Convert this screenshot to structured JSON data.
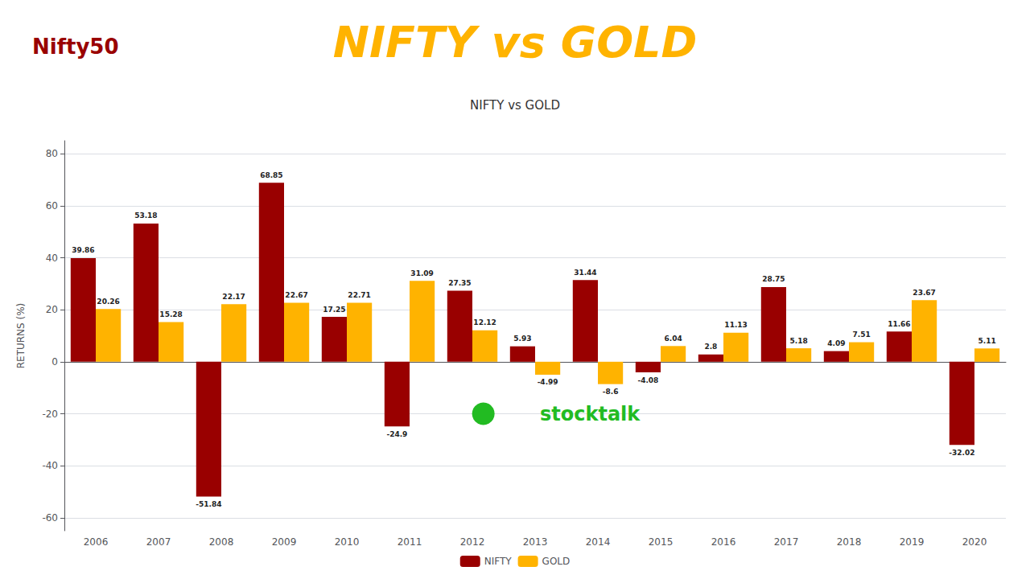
{
  "chart_data": {
    "type": "bar",
    "title": "NIFTY vs GOLD",
    "ylabel": "RETURNS (%)",
    "categories": [
      "2006",
      "2007",
      "2008",
      "2009",
      "2010",
      "2011",
      "2012",
      "2013",
      "2014",
      "2015",
      "2016",
      "2017",
      "2018",
      "2019",
      "2020"
    ],
    "series": [
      {
        "name": "NIFTY",
        "color": "#990000",
        "values": [
          39.86,
          53.18,
          -51.84,
          68.85,
          17.25,
          -24.9,
          27.35,
          5.93,
          31.44,
          -4.08,
          2.8,
          28.75,
          4.09,
          11.66,
          -32.02
        ]
      },
      {
        "name": "GOLD",
        "color": "#FFB300",
        "values": [
          20.26,
          15.28,
          22.17,
          22.67,
          22.71,
          31.09,
          12.12,
          -4.99,
          -8.6,
          6.04,
          11.13,
          5.18,
          7.51,
          23.67,
          5.11
        ]
      }
    ],
    "ylim": [
      -65,
      85
    ],
    "yticks": [
      -60,
      -40,
      -20,
      0,
      20,
      40,
      60,
      80
    ],
    "grid": true,
    "legend": "bottom",
    "data_labels": true,
    "annotations": [
      "Nifty50",
      "stocktalk"
    ]
  }
}
